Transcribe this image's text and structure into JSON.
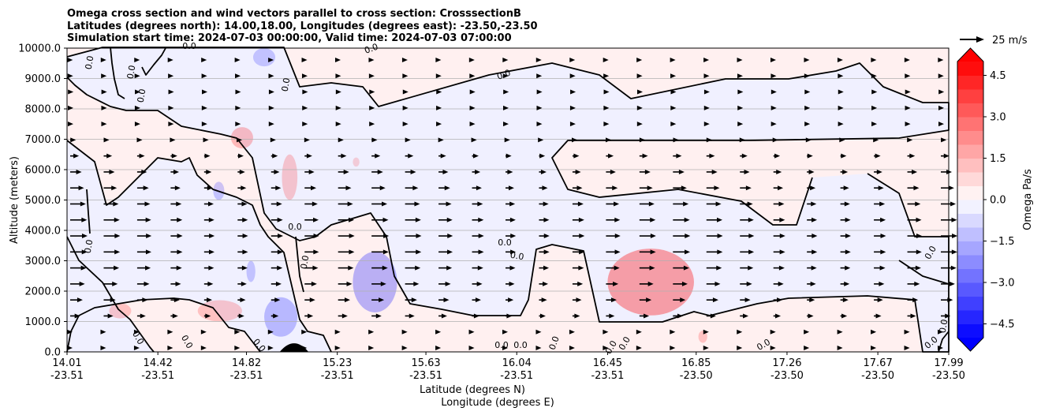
{
  "chart_data": {
    "type": "heatmap",
    "title_lines": [
      "Omega cross section and wind vectors parallel to cross section: CrosssectionB",
      "Latitudes (degrees north): 14.00,18.00, Longitudes (degrees east): -23.50,-23.50",
      "Simulation start time: 2024-07-03 00:00:00, Valid time: 2024-07-03 07:00:00"
    ],
    "ylabel": "Altitude (meters)",
    "xlabel_lat": "Latitude (degrees N)",
    "xlabel_lon": "Longitude (degrees E)",
    "ylim": [
      0,
      10000
    ],
    "yticks": [
      "0.0",
      "1000.0",
      "2000.0",
      "3000.0",
      "4000.0",
      "5000.0",
      "6000.0",
      "7000.0",
      "8000.0",
      "9000.0",
      "10000.0"
    ],
    "xlim": [
      14.01,
      17.99
    ],
    "xticks": [
      {
        "lat": "14.01",
        "lon": "-23.51"
      },
      {
        "lat": "14.42",
        "lon": "-23.51"
      },
      {
        "lat": "14.82",
        "lon": "-23.51"
      },
      {
        "lat": "15.23",
        "lon": "-23.51"
      },
      {
        "lat": "15.63",
        "lon": "-23.51"
      },
      {
        "lat": "16.04",
        "lon": "-23.51"
      },
      {
        "lat": "16.45",
        "lon": "-23.51"
      },
      {
        "lat": "16.85",
        "lon": "-23.50"
      },
      {
        "lat": "17.26",
        "lon": "-23.50"
      },
      {
        "lat": "17.67",
        "lon": "-23.50"
      },
      {
        "lat": "17.99",
        "lon": "-23.50"
      }
    ],
    "grid": "horizontal",
    "contour_level_label": "0.0",
    "vector_key_label": "25 m/s",
    "colorbar": {
      "label": "Omega Pa/s",
      "range": [
        -5,
        5
      ],
      "ticks": [
        "4.5",
        "3.0",
        "1.5",
        "0.0",
        "−1.5",
        "−3.0",
        "−4.5"
      ],
      "positive_color": "#ff0000",
      "negative_color": "#0000ff",
      "extend": "both"
    },
    "positive_regions": [
      {
        "x": [
          14.2,
          14.3
        ],
        "y": [
          1100,
          1600
        ],
        "value": 0.5
      },
      {
        "x": [
          14.6,
          14.8
        ],
        "y": [
          1000,
          1700
        ],
        "value": 0.5
      },
      {
        "x": [
          14.75,
          14.85
        ],
        "y": [
          6700,
          7400
        ],
        "value": 0.6
      },
      {
        "x": [
          14.98,
          15.05
        ],
        "y": [
          5000,
          6500
        ],
        "value": 0.5
      },
      {
        "x": [
          15.3,
          15.33
        ],
        "y": [
          6100,
          6400
        ],
        "value": 0.4
      },
      {
        "x": [
          16.45,
          16.84
        ],
        "y": [
          1200,
          3400
        ],
        "value": 0.9
      },
      {
        "x": [
          16.86,
          16.9
        ],
        "y": [
          300,
          700
        ],
        "value": 0.5
      }
    ],
    "negative_regions": [
      {
        "x": [
          14.82,
          14.86
        ],
        "y": [
          2300,
          3000
        ],
        "value": -0.5
      },
      {
        "x": [
          14.67,
          14.72
        ],
        "y": [
          5000,
          5600
        ],
        "value": -0.5
      },
      {
        "x": [
          14.85,
          14.95
        ],
        "y": [
          9400,
          10000
        ],
        "value": -0.5
      },
      {
        "x": [
          14.9,
          15.05
        ],
        "y": [
          500,
          1800
        ],
        "value": -0.6
      },
      {
        "x": [
          15.3,
          15.5
        ],
        "y": [
          1300,
          3300
        ],
        "value": -0.7
      }
    ],
    "terrain": {
      "x": [
        14.97,
        15.1
      ],
      "peak_m": 200
    },
    "wind_sample_columns": 27,
    "wind_sample_rows": 19
  }
}
